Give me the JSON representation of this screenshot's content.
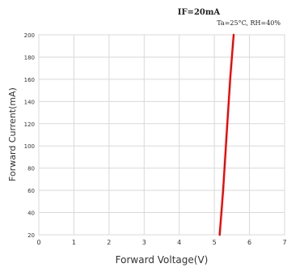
{
  "chart_data": {
    "type": "line",
    "title": "IF=20mA",
    "subtitle": "Ta=25°C, RH=40%",
    "xlabel": "Forward Voltage(V)",
    "ylabel": "Forward Current(mA)",
    "xlim": [
      0,
      7
    ],
    "ylim": [
      20,
      200
    ],
    "x_ticks": [
      "0",
      "1",
      "2",
      "3",
      "4",
      "5",
      "6",
      "7"
    ],
    "y_ticks": [
      "20",
      "40",
      "60",
      "80",
      "100",
      "120",
      "140",
      "160",
      "180",
      "200"
    ],
    "grid": true,
    "series": [
      {
        "color": "#ff0000",
        "x": [
          5.15,
          5.25,
          5.35,
          5.45,
          5.55
        ],
        "y": [
          20,
          60,
          110,
          160,
          200
        ]
      }
    ]
  }
}
